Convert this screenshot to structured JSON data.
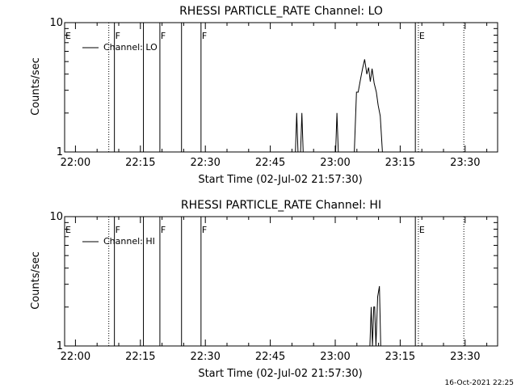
{
  "footer_timestamp": "16-Oct-2021 22:25",
  "colors": {
    "background": "#ffffff",
    "foreground": "#000000"
  },
  "chart_data": [
    {
      "type": "line",
      "title": "RHESSI PARTICLE_RATE Channel: LO",
      "xlabel": "Start Time (02-Jul-02 21:57:30)",
      "ylabel": "Counts/sec",
      "x_unit": "minutes after 21:57:30",
      "xlim": [
        0,
        100
      ],
      "ylim": [
        1,
        10
      ],
      "yscale": "log",
      "xticks": [
        {
          "x": 2.5,
          "label": "22:00"
        },
        {
          "x": 17.5,
          "label": "22:15"
        },
        {
          "x": 32.5,
          "label": "22:30"
        },
        {
          "x": 47.5,
          "label": "22:45"
        },
        {
          "x": 62.5,
          "label": "23:00"
        },
        {
          "x": 77.5,
          "label": "23:15"
        },
        {
          "x": 92.5,
          "label": "23:30"
        }
      ],
      "yticks": [
        {
          "y": 1,
          "label": "1"
        },
        {
          "y": 10,
          "label": "10"
        }
      ],
      "legend": {
        "label": "Channel: LO",
        "position": "top-left"
      },
      "flags": [
        {
          "x": 0,
          "label": "E",
          "style": "solid"
        },
        {
          "x": 10.2,
          "label": "",
          "style": "dotted"
        },
        {
          "x": 11.5,
          "label": "F",
          "style": "solid"
        },
        {
          "x": 18.2,
          "label": "",
          "style": "solid"
        },
        {
          "x": 22.0,
          "label": "F",
          "style": "solid"
        },
        {
          "x": 27.0,
          "label": "",
          "style": "solid"
        },
        {
          "x": 31.5,
          "label": "F",
          "style": "solid"
        },
        {
          "x": 81.0,
          "label": "",
          "style": "solid"
        },
        {
          "x": 81.7,
          "label": "E",
          "style": "dotted"
        },
        {
          "x": 92.2,
          "label": "",
          "style": "dotted"
        }
      ],
      "series": [
        {
          "x": [
            53.3,
            53.6,
            53.9,
            54.5,
            54.8,
            55.1,
            62.6,
            62.9,
            63.2,
            66.9,
            67.4,
            67.8,
            68.3,
            68.8,
            69.3,
            69.8,
            70.2,
            70.6,
            71.0,
            71.5,
            72.0,
            72.4,
            72.9,
            73.4,
            74.3
          ],
          "y": [
            1,
            2.0,
            1,
            1,
            2.0,
            1,
            1,
            2.0,
            1,
            1,
            2.9,
            2.9,
            3.6,
            4.4,
            5.2,
            4.0,
            4.5,
            3.5,
            4.4,
            3.4,
            2.9,
            2.3,
            1.9,
            1,
            1
          ]
        }
      ]
    },
    {
      "type": "line",
      "title": "RHESSI PARTICLE_RATE Channel: HI",
      "xlabel": "Start Time (02-Jul-02 21:57:30)",
      "ylabel": "Counts/sec",
      "x_unit": "minutes after 21:57:30",
      "xlim": [
        0,
        100
      ],
      "ylim": [
        1,
        10
      ],
      "yscale": "log",
      "xticks": [
        {
          "x": 2.5,
          "label": "22:00"
        },
        {
          "x": 17.5,
          "label": "22:15"
        },
        {
          "x": 32.5,
          "label": "22:30"
        },
        {
          "x": 47.5,
          "label": "22:45"
        },
        {
          "x": 62.5,
          "label": "23:00"
        },
        {
          "x": 77.5,
          "label": "23:15"
        },
        {
          "x": 92.5,
          "label": "23:30"
        }
      ],
      "yticks": [
        {
          "y": 1,
          "label": "1"
        },
        {
          "y": 10,
          "label": "10"
        }
      ],
      "legend": {
        "label": "Channel: HI",
        "position": "top-left"
      },
      "flags": [
        {
          "x": 0,
          "label": "E",
          "style": "solid"
        },
        {
          "x": 10.2,
          "label": "",
          "style": "dotted"
        },
        {
          "x": 11.5,
          "label": "F",
          "style": "solid"
        },
        {
          "x": 18.2,
          "label": "",
          "style": "solid"
        },
        {
          "x": 22.0,
          "label": "F",
          "style": "solid"
        },
        {
          "x": 27.0,
          "label": "",
          "style": "solid"
        },
        {
          "x": 31.5,
          "label": "F",
          "style": "solid"
        },
        {
          "x": 81.0,
          "label": "",
          "style": "solid"
        },
        {
          "x": 81.7,
          "label": "E",
          "style": "dotted"
        },
        {
          "x": 92.2,
          "label": "",
          "style": "dotted"
        }
      ],
      "series": [
        {
          "x": [
            70.5,
            70.8,
            71.1,
            71.4,
            71.6,
            71.9,
            72.3,
            72.7,
            73.0
          ],
          "y": [
            1,
            2.0,
            1,
            2.0,
            2.0,
            1,
            2.4,
            2.9,
            1
          ]
        }
      ]
    }
  ]
}
